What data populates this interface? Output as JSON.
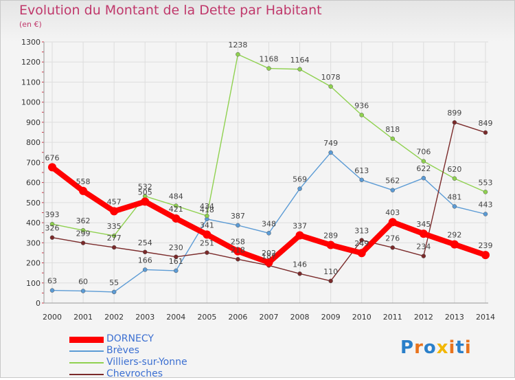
{
  "header": {
    "title": "Evolution du Montant de la Dette par Habitant",
    "unit": "(en €)"
  },
  "logo": {
    "text": "Proxiti",
    "letters": [
      "P",
      "r",
      "o",
      "x",
      "i",
      "t",
      "i"
    ],
    "colors": [
      "#2a7fc9",
      "#e8731c",
      "#2a7fc9",
      "#f2b705",
      "#e8731c",
      "#2a7fc9",
      "#e8731c"
    ]
  },
  "chart_data": {
    "type": "line",
    "title": "Evolution du Montant de la Dette par Habitant",
    "ylabel": "(en €)",
    "xlabel": "",
    "x": [
      "2000",
      "2001",
      "2002",
      "2003",
      "2004",
      "2005",
      "2006",
      "2007",
      "2008",
      "2009",
      "2010",
      "2011",
      "2012",
      "2013",
      "2014"
    ],
    "ylim": [
      0,
      1300
    ],
    "yticks": [
      0,
      100,
      200,
      300,
      400,
      500,
      600,
      700,
      800,
      900,
      1000,
      1100,
      1200,
      1300
    ],
    "grid": true,
    "legend": "bottom-left",
    "series": [
      {
        "name": "DORNECY",
        "color": "#ff0000",
        "emphasis": true,
        "values": [
          676,
          558,
          457,
          505,
          421,
          341,
          258,
          202,
          337,
          289,
          249,
          403,
          345,
          292,
          239
        ]
      },
      {
        "name": "Brèves",
        "color": "#5b9bd5",
        "values": [
          63,
          60,
          55,
          166,
          161,
          418,
          387,
          348,
          569,
          749,
          613,
          562,
          622,
          481,
          443
        ]
      },
      {
        "name": "Villiers-sur-Yonne",
        "color": "#8fd14f",
        "values": [
          393,
          362,
          335,
          532,
          484,
          434,
          1238,
          1168,
          1164,
          1078,
          936,
          818,
          706,
          620,
          553
        ]
      },
      {
        "name": "Chevroches",
        "color": "#7a2a2a",
        "values": [
          326,
          299,
          277,
          254,
          230,
          251,
          218,
          187,
          146,
          110,
          313,
          276,
          234,
          899,
          849
        ]
      }
    ]
  }
}
